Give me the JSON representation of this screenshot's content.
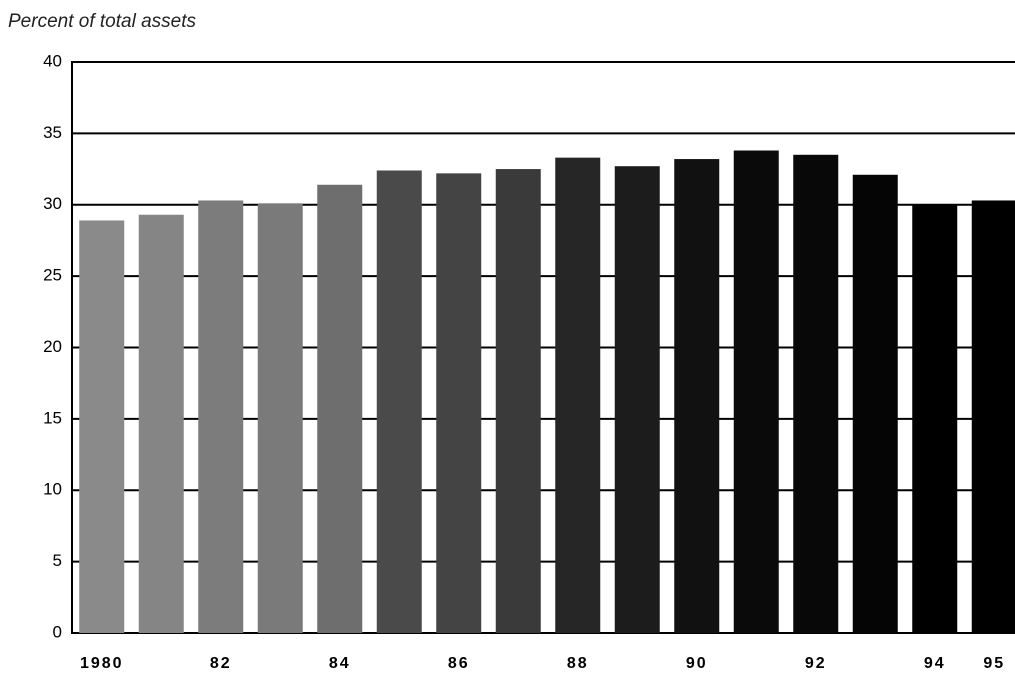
{
  "chart_data": {
    "type": "bar",
    "title": "Percent of total assets",
    "categories": [
      "1980",
      null,
      "82",
      null,
      "84",
      null,
      "86",
      null,
      "88",
      null,
      "90",
      null,
      "92",
      null,
      "94",
      "95"
    ],
    "values": [
      28.9,
      29.3,
      30.3,
      30.1,
      31.4,
      32.4,
      32.2,
      32.5,
      33.3,
      32.7,
      33.2,
      33.8,
      33.5,
      32.1,
      30.0,
      30.3
    ],
    "colors": [
      "#8a8a8a",
      "#858585",
      "#7c7c7c",
      "#7a7a7a",
      "#6e6e6e",
      "#4a4a4a",
      "#444444",
      "#3a3a3a",
      "#262626",
      "#1c1c1c",
      "#111111",
      "#0a0a0a",
      "#080808",
      "#050505",
      "#000000",
      "#000000"
    ],
    "ylim": [
      0,
      40
    ],
    "yticks": [
      0,
      5,
      10,
      15,
      20,
      25,
      30,
      35,
      40
    ],
    "grid": true
  }
}
